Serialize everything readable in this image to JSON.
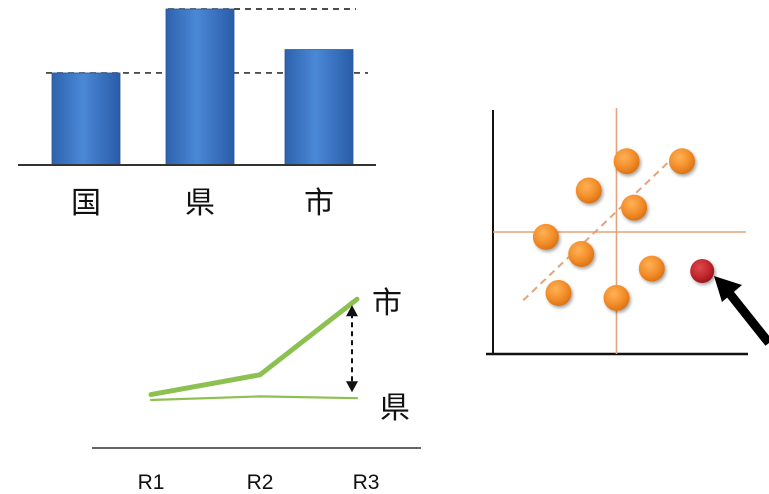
{
  "chart_data": [
    {
      "type": "bar",
      "categories": [
        "国",
        "県",
        "市"
      ],
      "values": [
        59,
        100,
        74
      ],
      "ylim": [
        0,
        100
      ],
      "bar_color": "#3b76c4",
      "reference_lines": [
        59,
        100
      ],
      "grid": false
    },
    {
      "type": "line",
      "categories": [
        "R1",
        "R2",
        "R3"
      ],
      "series": [
        {
          "name": "市",
          "values": [
            13,
            24,
            66
          ],
          "color": "#8cc152"
        },
        {
          "name": "県",
          "values": [
            10,
            12,
            11
          ],
          "color": "#8cc152"
        }
      ],
      "ylim": [
        0,
        100
      ],
      "annotation": "double-arrow-gap-at-R3",
      "grid": false
    },
    {
      "type": "scatter",
      "xlim": [
        0,
        10
      ],
      "ylim": [
        0,
        10
      ],
      "points": [
        {
          "x": 5.3,
          "y": 7.9
        },
        {
          "x": 7.5,
          "y": 7.9
        },
        {
          "x": 3.8,
          "y": 6.7
        },
        {
          "x": 5.6,
          "y": 6.0
        },
        {
          "x": 2.1,
          "y": 4.8
        },
        {
          "x": 3.5,
          "y": 4.1
        },
        {
          "x": 6.3,
          "y": 3.5
        },
        {
          "x": 2.6,
          "y": 2.5
        },
        {
          "x": 4.9,
          "y": 2.3
        }
      ],
      "outlier": {
        "x": 8.3,
        "y": 3.4
      },
      "point_color": "#f28c28",
      "outlier_color": "#c0272d",
      "crosshair": {
        "x": 4.9,
        "y": 5.0
      },
      "trend": {
        "from": [
          1.2,
          2.2
        ],
        "to": [
          7.2,
          8.1
        ]
      },
      "grid": false
    }
  ]
}
